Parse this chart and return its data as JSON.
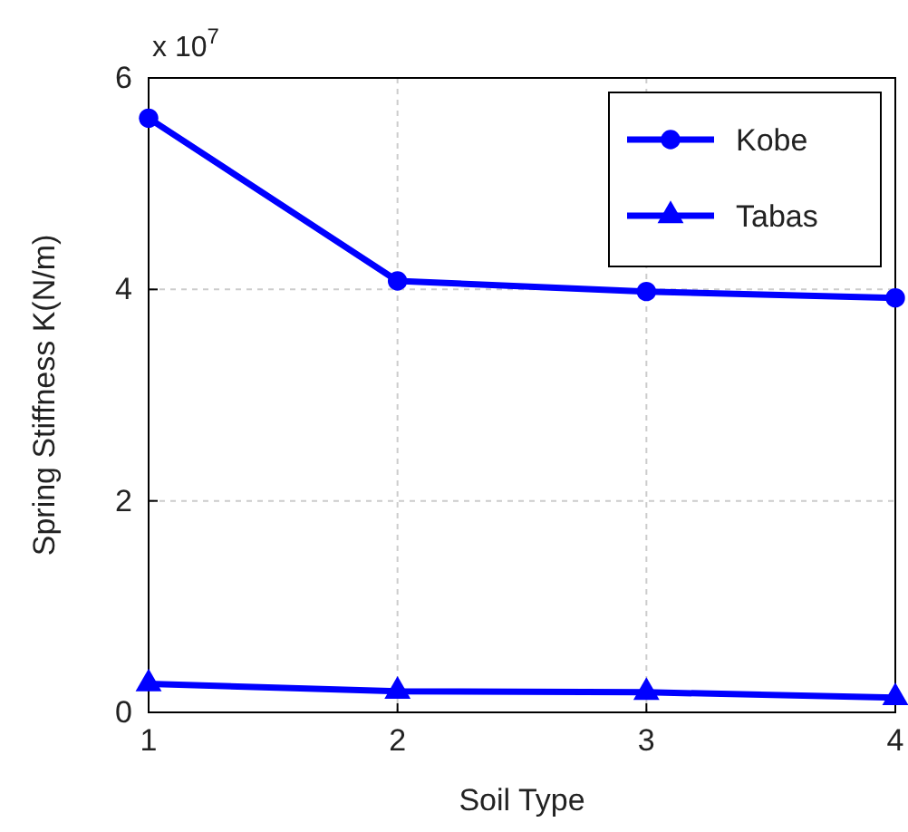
{
  "chart_data": {
    "type": "line",
    "xlabel": "Soil Type",
    "ylabel": "Spring Stiffness K(N/m)",
    "x": [
      1,
      2,
      3,
      4
    ],
    "series": [
      {
        "name": "Kobe",
        "color": "#0000ff",
        "values": [
          5.62,
          4.08,
          3.98,
          3.92
        ],
        "marker": "circle"
      },
      {
        "name": "Tabas",
        "color": "#0000ff",
        "values": [
          0.27,
          0.2,
          0.19,
          0.14
        ],
        "marker": "triangle"
      }
    ],
    "xlim": [
      1,
      4
    ],
    "xticks": [
      1,
      2,
      3,
      4
    ],
    "ylim": [
      0,
      6
    ],
    "yticks": [
      0,
      2,
      4,
      6
    ],
    "annotations": [
      "x 10$^{7}$"
    ],
    "grid": true,
    "legend": "top right",
    "line_style": "solid"
  }
}
